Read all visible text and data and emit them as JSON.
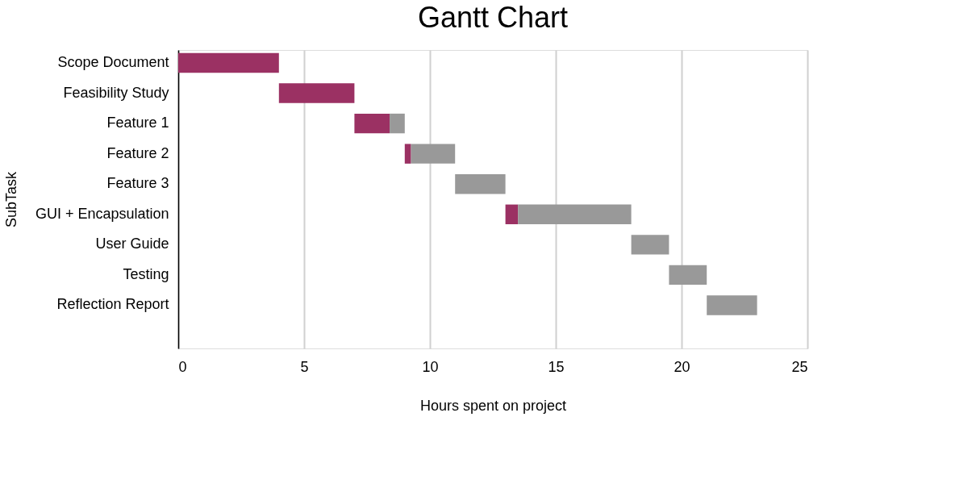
{
  "chart_data": {
    "type": "bar",
    "orientation": "horizontal",
    "title": "Gantt Chart",
    "xlabel": "Hours spent on project",
    "ylabel": "SubTask",
    "categories": [
      "Scope Document",
      "Feasibility Study",
      "Feature 1",
      "Feature 2",
      "Feature 3",
      "GUI + Encapsulation",
      "User Guide",
      "Testing",
      "Reflection Report",
      null
    ],
    "series": [
      {
        "color": "#9b3163",
        "base": [
          0,
          4,
          7,
          9,
          null,
          13,
          null,
          null,
          null,
          null
        ],
        "values": [
          4,
          3,
          1.4,
          0.25,
          null,
          0.5,
          null,
          null,
          null,
          null
        ]
      },
      {
        "color": "#999999",
        "base": [
          null,
          null,
          8.4,
          9.25,
          11,
          13.5,
          18,
          19.5,
          21,
          null
        ],
        "values": [
          null,
          null,
          0.6,
          1.75,
          2,
          4.5,
          1.5,
          1.5,
          2,
          null
        ]
      }
    ],
    "xlim": [
      0,
      25
    ],
    "xticks": [
      0,
      5,
      10,
      15,
      20,
      25
    ],
    "grid": "x",
    "legend": false
  }
}
